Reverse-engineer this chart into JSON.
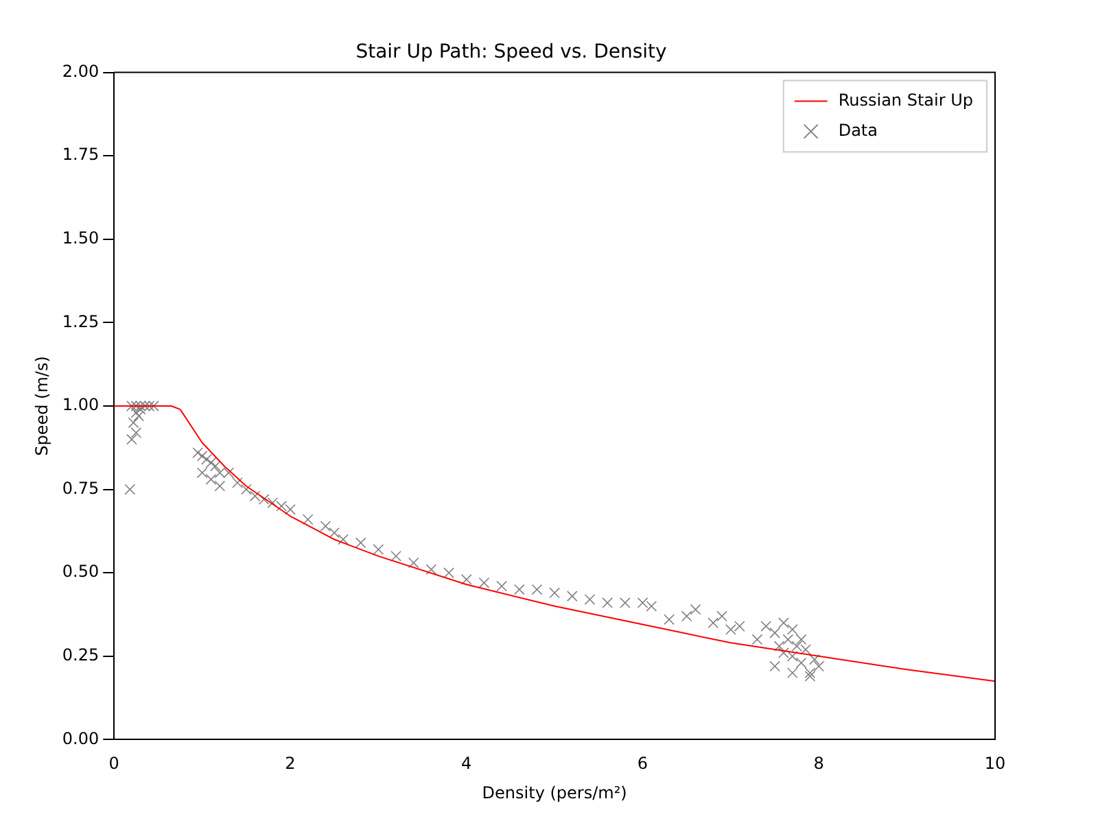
{
  "chart_data": {
    "type": "line",
    "title": "Stair Up Path: Speed vs. Density",
    "xlabel": "Density (pers/m²)",
    "ylabel": "Speed (m/s)",
    "xlim": [
      0,
      10
    ],
    "xticks": [
      0,
      2,
      4,
      6,
      8,
      10
    ],
    "ylim": [
      0,
      2
    ],
    "yticks": [
      {
        "value": 0,
        "label": "0.00"
      },
      {
        "value": 0.25,
        "label": "0.25"
      },
      {
        "value": 0.5,
        "label": "0.50"
      },
      {
        "value": 0.75,
        "label": "0.75"
      },
      {
        "value": 1,
        "label": "1.00"
      },
      {
        "value": 1.25,
        "label": "1.25"
      },
      {
        "value": 1.5,
        "label": "1.50"
      },
      {
        "value": 1.75,
        "label": "1.75"
      },
      {
        "value": 2,
        "label": "2.00"
      }
    ],
    "grid": false,
    "legend": "top right",
    "series": [
      {
        "name": "Russian Stair Up",
        "color": "#ff0000",
        "marker": "none",
        "x": [
          0,
          0.65,
          0.75,
          0.9,
          1,
          1.25,
          1.5,
          2,
          2.5,
          3,
          4,
          5,
          6,
          7,
          8,
          9,
          10
        ],
        "values": [
          1,
          1,
          0.99,
          0.93,
          0.89,
          0.82,
          0.76,
          0.67,
          0.6,
          0.55,
          0.465,
          0.4,
          0.345,
          0.29,
          0.25,
          0.21,
          0.175
        ]
      },
      {
        "name": "Data",
        "type": "scatter",
        "color": "#808080",
        "marker": "cross",
        "x": [
          0.18,
          0.2,
          0.25,
          0.3,
          0.35,
          0.4,
          0.45,
          0.22,
          0.25,
          0.28,
          0.2,
          0.25,
          0.3,
          0.95,
          1.0,
          1.05,
          1.1,
          1.15,
          1.2,
          1.0,
          1.1,
          1.2,
          1.3,
          1.4,
          1.5,
          1.6,
          1.7,
          1.8,
          1.9,
          2.0,
          2.2,
          2.4,
          2.5,
          2.6,
          2.8,
          3.0,
          3.2,
          3.4,
          3.6,
          3.8,
          4.0,
          4.2,
          4.4,
          4.6,
          4.8,
          5.0,
          5.2,
          5.4,
          5.6,
          5.8,
          6.0,
          6.1,
          6.3,
          6.5,
          6.6,
          6.8,
          6.9,
          7.0,
          7.1,
          7.3,
          7.4,
          7.5,
          7.55,
          7.6,
          7.65,
          7.7,
          7.75,
          7.8,
          7.85,
          7.9,
          7.95,
          8.0,
          7.6,
          7.7,
          7.8,
          7.5,
          7.7,
          7.9
        ],
        "values": [
          0.75,
          1.0,
          1.0,
          1.0,
          1.0,
          1.0,
          1.0,
          0.95,
          0.92,
          0.97,
          0.9,
          0.98,
          0.99,
          0.86,
          0.85,
          0.84,
          0.83,
          0.82,
          0.8,
          0.8,
          0.78,
          0.76,
          0.8,
          0.77,
          0.75,
          0.73,
          0.72,
          0.71,
          0.7,
          0.69,
          0.66,
          0.64,
          0.62,
          0.6,
          0.59,
          0.57,
          0.55,
          0.53,
          0.51,
          0.5,
          0.48,
          0.47,
          0.46,
          0.45,
          0.45,
          0.44,
          0.43,
          0.42,
          0.41,
          0.41,
          0.41,
          0.4,
          0.36,
          0.37,
          0.39,
          0.35,
          0.37,
          0.33,
          0.34,
          0.3,
          0.34,
          0.32,
          0.28,
          0.26,
          0.3,
          0.25,
          0.28,
          0.23,
          0.27,
          0.2,
          0.24,
          0.22,
          0.35,
          0.33,
          0.3,
          0.22,
          0.2,
          0.19
        ]
      }
    ]
  }
}
